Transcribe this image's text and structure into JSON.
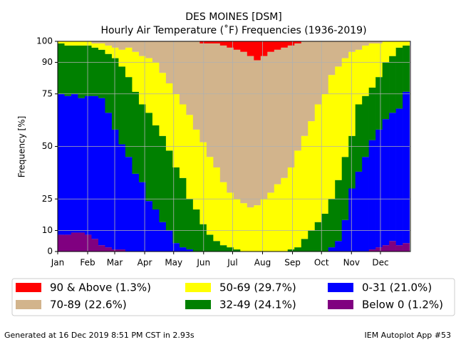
{
  "chart_data": {
    "type": "stacked_bar",
    "title": "DES MOINES [DSM]",
    "subtitle": "Hourly Air Temperature (˚F) Frequencies (1936-2019)",
    "y_label": "Frequency [%]",
    "footer_left": "Generated at 16 Dec 2019 8:51 PM CST in 2.93s",
    "footer_right": "IEM Autoplot App #53",
    "x": [
      0,
      7,
      14,
      21,
      28,
      35,
      42,
      49,
      56,
      63,
      70,
      77,
      84,
      91,
      98,
      105,
      112,
      119,
      126,
      133,
      140,
      147,
      154,
      161,
      168,
      175,
      182,
      189,
      196,
      203,
      210,
      217,
      224,
      231,
      238,
      245,
      252,
      259,
      266,
      273,
      280,
      287,
      294,
      301,
      308,
      315,
      322,
      329,
      336,
      343,
      350,
      357
    ],
    "bin_width": 7,
    "xlim": [
      0,
      365
    ],
    "xticks": [
      {
        "value": 0,
        "label": "Jan"
      },
      {
        "value": 31,
        "label": "Feb"
      },
      {
        "value": 59,
        "label": "Mar"
      },
      {
        "value": 90,
        "label": "Apr"
      },
      {
        "value": 120,
        "label": "May"
      },
      {
        "value": 151,
        "label": "Jun"
      },
      {
        "value": 181,
        "label": "Jul"
      },
      {
        "value": 212,
        "label": "Aug"
      },
      {
        "value": 243,
        "label": "Sep"
      },
      {
        "value": 273,
        "label": "Oct"
      },
      {
        "value": 304,
        "label": "Nov"
      },
      {
        "value": 334,
        "label": "Dec"
      }
    ],
    "ylim": [
      0,
      100
    ],
    "yticks": [
      0,
      10,
      25,
      50,
      75,
      90,
      100
    ],
    "grid": true,
    "series": [
      {
        "name": "90 & Above (1.3%)",
        "color": "#ff0000",
        "values": [
          0,
          0,
          0,
          0,
          0,
          0,
          0,
          0,
          0,
          0,
          0,
          0,
          0,
          0,
          0,
          0,
          0,
          0,
          0,
          0,
          0,
          1,
          1,
          1,
          2,
          3,
          4,
          5,
          7,
          9,
          7,
          5,
          4,
          3,
          2,
          1,
          0,
          0,
          0,
          0,
          0,
          0,
          0,
          0,
          0,
          0,
          0,
          0,
          0,
          0,
          0,
          0
        ]
      },
      {
        "name": "70-89 (22.6%)",
        "color": "#d2b48c",
        "values": [
          0,
          0,
          0,
          0,
          0,
          1,
          1,
          2,
          3,
          4,
          3,
          5,
          7,
          8,
          10,
          15,
          20,
          25,
          30,
          35,
          42,
          47,
          54,
          59,
          65,
          69,
          71,
          72,
          72,
          69,
          68,
          67,
          64,
          62,
          58,
          51,
          45,
          38,
          30,
          25,
          16,
          12,
          8,
          5,
          4,
          2,
          1,
          1,
          0,
          0,
          0,
          0
        ]
      },
      {
        "name": "50-69 (29.7%)",
        "color": "#ffff00",
        "values": [
          1,
          2,
          2,
          2,
          2,
          2,
          3,
          4,
          5,
          8,
          14,
          19,
          23,
          26,
          30,
          30,
          32,
          35,
          35,
          40,
          38,
          39,
          37,
          35,
          30,
          26,
          24,
          23,
          21,
          22,
          25,
          28,
          32,
          35,
          39,
          46,
          49,
          52,
          56,
          57,
          59,
          54,
          47,
          40,
          26,
          24,
          21,
          16,
          10,
          7,
          3,
          2
        ]
      },
      {
        "name": "32-49 (24.1%)",
        "color": "#008000",
        "values": [
          24,
          24,
          23,
          25,
          24,
          23,
          23,
          28,
          34,
          37,
          38,
          39,
          37,
          42,
          40,
          41,
          38,
          36,
          33,
          24,
          20,
          13,
          8,
          5,
          3,
          2,
          1,
          0,
          0,
          0,
          0,
          0,
          0,
          0,
          1,
          2,
          6,
          10,
          14,
          18,
          23,
          29,
          30,
          25,
          32,
          29,
          25,
          25,
          27,
          27,
          29,
          22
        ]
      },
      {
        "name": "0-31 (21.0%)",
        "color": "#0000ff",
        "values": [
          67,
          66,
          66,
          64,
          66,
          68,
          70,
          64,
          57,
          50,
          45,
          37,
          33,
          24,
          20,
          14,
          10,
          4,
          2,
          1,
          0,
          0,
          0,
          0,
          0,
          0,
          0,
          0,
          0,
          0,
          0,
          0,
          0,
          0,
          0,
          0,
          0,
          0,
          0,
          0,
          2,
          5,
          15,
          30,
          38,
          45,
          52,
          56,
          60,
          61,
          65,
          72
        ]
      },
      {
        "name": "Below 0 (1.2%)",
        "color": "#800080",
        "values": [
          8,
          8,
          9,
          9,
          8,
          6,
          3,
          2,
          1,
          1,
          0,
          0,
          0,
          0,
          0,
          0,
          0,
          0,
          0,
          0,
          0,
          0,
          0,
          0,
          0,
          0,
          0,
          0,
          0,
          0,
          0,
          0,
          0,
          0,
          0,
          0,
          0,
          0,
          0,
          0,
          0,
          0,
          0,
          0,
          0,
          0,
          1,
          2,
          3,
          5,
          3,
          4
        ]
      }
    ]
  }
}
